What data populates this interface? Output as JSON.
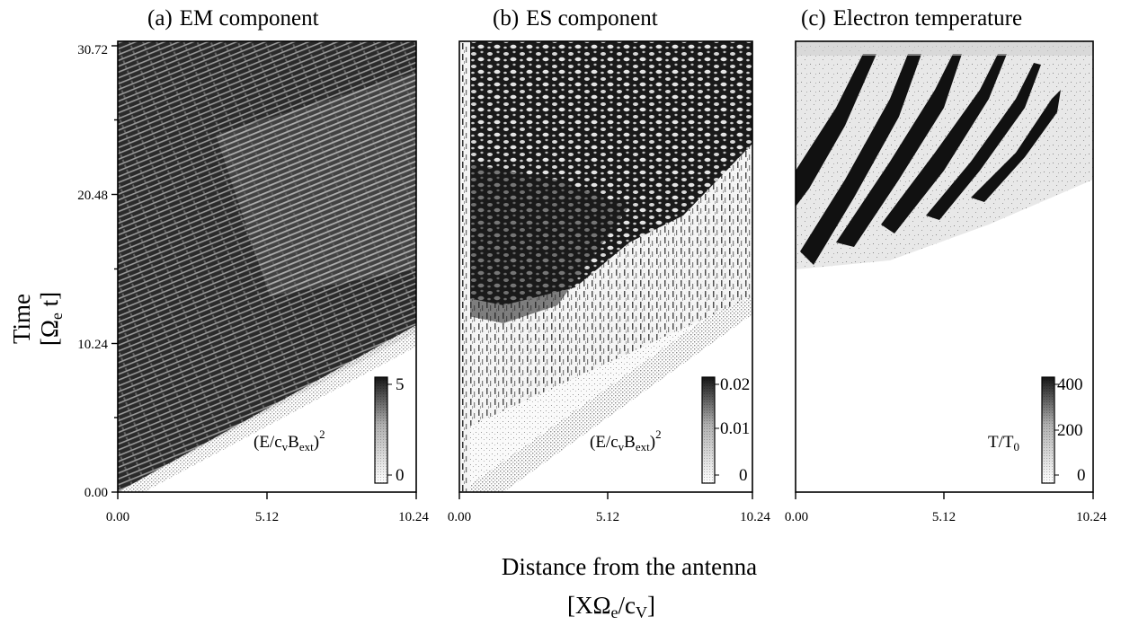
{
  "chart_data": [
    {
      "type": "heatmap",
      "panel_label": "(a)",
      "title": "EM component",
      "x_ticks": [
        "0.00",
        "5.12",
        "10.24"
      ],
      "y_ticks": [
        "0.00",
        "10.24",
        "20.48",
        "30.72"
      ],
      "xlim": [
        0,
        10.24
      ],
      "ylim": [
        0,
        30.72
      ],
      "colorbar": {
        "label_main": "(E/c",
        "label_sub1": "v",
        "label_mid": "B",
        "label_sub2": "ext",
        "label_end": ")",
        "label_sup": "2",
        "ticks": [
          "5",
          "0"
        ],
        "range": [
          0,
          5
        ]
      },
      "description_color": "#000000"
    },
    {
      "type": "heatmap",
      "panel_label": "(b)",
      "title": "ES component",
      "x_ticks": [
        "0.00",
        "5.12",
        "10.24"
      ],
      "xlim": [
        0,
        10.24
      ],
      "ylim": [
        0,
        30.72
      ],
      "colorbar": {
        "label_main": "(E/c",
        "label_sub1": "v",
        "label_mid": "B",
        "label_sub2": "ext",
        "label_end": ")",
        "label_sup": "2",
        "ticks": [
          "0.02",
          "0.01",
          "0"
        ],
        "range": [
          0,
          0.02
        ]
      }
    },
    {
      "type": "heatmap",
      "panel_label": "(c)",
      "title": "Electron temperature",
      "x_ticks": [
        "0.00",
        "5.12",
        "10.24"
      ],
      "xlim": [
        0,
        10.24
      ],
      "ylim": [
        0,
        30.72
      ],
      "colorbar": {
        "label_main": "T/T",
        "label_sub1": "0",
        "ticks": [
          "400",
          "200",
          "0"
        ],
        "range": [
          0,
          400
        ]
      }
    }
  ],
  "y_axis": {
    "label": "Time",
    "unit_open": "[",
    "unit_symbol": "Ω",
    "unit_sub": "e",
    "unit_var": " t",
    "unit_close": "]"
  },
  "x_axis": {
    "label": "Distance from the antenna",
    "unit_open": "[XΩ",
    "unit_sub1": "e",
    "unit_mid": "/c",
    "unit_sub2": "V",
    "unit_close": "]"
  }
}
